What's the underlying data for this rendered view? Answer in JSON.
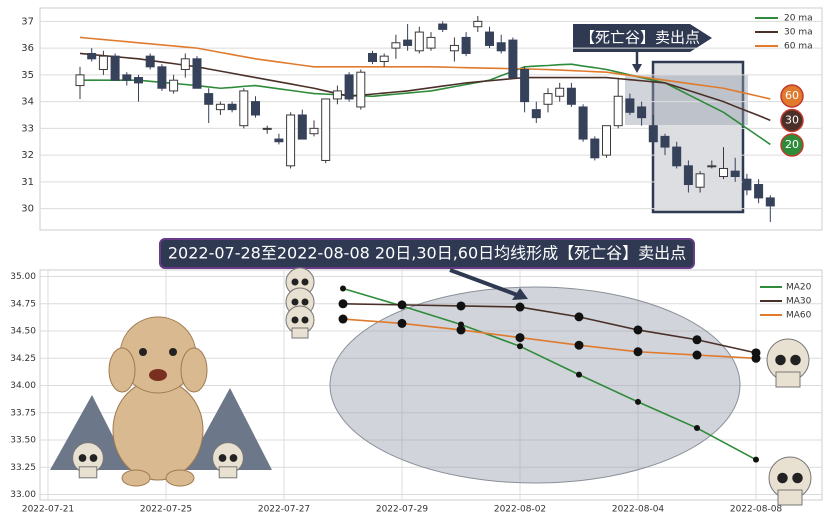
{
  "chart_data": [
    {
      "type": "candlestick",
      "open": [
        34.6,
        35.8,
        35.2,
        35.7,
        35.0,
        34.9,
        35.7,
        35.3,
        34.4,
        35.2,
        35.6,
        34.3,
        33.7,
        33.9,
        33.1,
        34.0,
        33.0,
        32.6,
        31.6,
        33.5,
        32.8,
        31.8,
        34.1,
        35.0,
        33.8,
        35.8,
        35.5,
        36.0,
        36.3,
        35.9,
        36.0,
        36.9,
        35.9,
        36.4,
        36.8,
        36.6,
        36.2,
        36.3,
        35.2,
        33.7,
        33.9,
        34.2,
        34.5,
        33.8,
        32.6,
        32.0,
        33.1,
        34.1,
        33.8,
        33.1,
        32.7,
        32.3,
        31.6,
        30.8,
        31.6,
        31.2,
        31.4,
        31.1,
        30.9,
        30.4
      ],
      "high": [
        35.3,
        36.0,
        35.9,
        35.8,
        35.1,
        35.0,
        35.8,
        35.4,
        35.0,
        35.8,
        35.7,
        34.5,
        34.0,
        34.0,
        34.5,
        34.2,
        33.1,
        32.8,
        33.6,
        33.7,
        33.3,
        34.1,
        34.6,
        35.1,
        35.2,
        35.9,
        35.8,
        36.5,
        36.9,
        36.8,
        36.6,
        37.0,
        36.4,
        36.6,
        37.2,
        36.8,
        36.5,
        36.4,
        35.3,
        34.0,
        34.5,
        34.7,
        34.7,
        33.9,
        32.7,
        33.1,
        34.9,
        34.3,
        34.0,
        33.5,
        32.8,
        32.5,
        31.8,
        31.4,
        31.8,
        32.3,
        31.9,
        31.3,
        31.1,
        30.5
      ],
      "low": [
        34.1,
        35.5,
        35.0,
        34.8,
        34.6,
        34.0,
        35.2,
        34.4,
        34.3,
        34.9,
        34.5,
        33.2,
        33.5,
        33.6,
        33.0,
        33.4,
        32.8,
        32.4,
        31.5,
        32.6,
        32.7,
        31.7,
        33.9,
        34.0,
        33.7,
        35.4,
        35.3,
        35.6,
        35.9,
        35.8,
        35.9,
        36.6,
        35.5,
        35.7,
        36.6,
        36.0,
        35.8,
        34.9,
        33.6,
        33.2,
        33.6,
        34.0,
        33.8,
        32.5,
        31.8,
        31.9,
        33.0,
        33.5,
        33.1,
        32.4,
        32.0,
        31.5,
        30.6,
        30.6,
        31.5,
        31.1,
        31.0,
        30.5,
        30.2,
        29.5
      ],
      "close": [
        35.0,
        35.6,
        35.7,
        34.8,
        34.8,
        34.7,
        35.3,
        34.5,
        34.8,
        35.6,
        34.5,
        33.9,
        33.9,
        33.7,
        34.4,
        33.5,
        33.0,
        32.5,
        33.5,
        32.6,
        33.0,
        34.1,
        34.4,
        34.1,
        35.1,
        35.5,
        35.7,
        36.2,
        36.1,
        36.6,
        36.4,
        36.7,
        36.1,
        35.8,
        37.0,
        36.1,
        35.9,
        34.9,
        34.0,
        33.4,
        34.3,
        34.5,
        33.9,
        32.6,
        31.9,
        33.1,
        34.2,
        33.6,
        33.4,
        32.5,
        32.3,
        31.6,
        30.9,
        31.3,
        31.6,
        31.5,
        31.2,
        30.7,
        30.4,
        30.1
      ],
      "up_color": "#ffffff",
      "down_color": "#36415a",
      "series": [
        {
          "name": "20 ma",
          "period": 20,
          "color": "#2e8b3a",
          "values": [
            34.8,
            34.8,
            34.8,
            34.8,
            34.8,
            34.8,
            34.76,
            34.72,
            34.68,
            34.64,
            34.6,
            34.55,
            34.5,
            34.53,
            34.57,
            34.6,
            34.54,
            34.48,
            34.42,
            34.36,
            34.3,
            34.28,
            34.26,
            34.24,
            34.22,
            34.2,
            34.24,
            34.28,
            34.32,
            34.36,
            34.4,
            34.48,
            34.56,
            34.64,
            34.72,
            34.8,
            34.97,
            35.13,
            35.3,
            35.33,
            35.35,
            35.38,
            35.4,
            35.33,
            35.27,
            35.2,
            35.1,
            35.0,
            34.9,
            34.8,
            34.7,
            34.48,
            34.26,
            34.04,
            33.82,
            33.6,
            33.3,
            33.0,
            32.7,
            32.4
          ]
        },
        {
          "name": "30 ma",
          "period": 30,
          "color": "#4a3028",
          "values": [
            35.8,
            35.76,
            35.72,
            35.68,
            35.64,
            35.6,
            35.54,
            35.48,
            35.42,
            35.36,
            35.3,
            35.22,
            35.14,
            35.06,
            34.98,
            34.9,
            34.82,
            34.74,
            34.66,
            34.58,
            34.5,
            34.4,
            34.3,
            34.2,
            34.24,
            34.28,
            34.32,
            34.36,
            34.4,
            34.46,
            34.52,
            34.58,
            34.64,
            34.7,
            34.74,
            34.78,
            34.82,
            34.86,
            34.9,
            34.9,
            34.9,
            34.9,
            34.9,
            34.9,
            34.9,
            34.9,
            34.86,
            34.82,
            34.78,
            34.74,
            34.7,
            34.56,
            34.42,
            34.28,
            34.14,
            34.0,
            33.82,
            33.65,
            33.48,
            33.3
          ]
        },
        {
          "name": "60 ma",
          "period": 60,
          "color": "#e07b2e",
          "values": [
            36.4,
            36.36,
            36.32,
            36.28,
            36.24,
            36.2,
            36.16,
            36.12,
            36.08,
            36.04,
            36.0,
            35.92,
            35.84,
            35.76,
            35.68,
            35.6,
            35.54,
            35.48,
            35.42,
            35.36,
            35.3,
            35.3,
            35.3,
            35.3,
            35.3,
            35.3,
            35.3,
            35.3,
            35.3,
            35.3,
            35.3,
            35.29,
            35.28,
            35.27,
            35.26,
            35.25,
            35.24,
            35.23,
            35.22,
            35.21,
            35.2,
            35.18,
            35.16,
            35.14,
            35.12,
            35.1,
            35.04,
            34.98,
            34.92,
            34.86,
            34.8,
            34.74,
            34.68,
            34.62,
            34.56,
            34.5,
            34.4,
            34.3,
            34.2,
            34.1
          ]
        }
      ],
      "ylim": [
        29.2,
        37.5
      ],
      "yticks": [
        30,
        31,
        32,
        33,
        34,
        35,
        36,
        37
      ],
      "grid": true,
      "legend": "upper right",
      "annotation": "【死亡谷】卖出点"
    },
    {
      "type": "line",
      "title": "2022-07-28至2022-08-08 20日,30日,60日均线形成【死亡谷】卖出点",
      "categories": [
        "2022-07-21",
        null,
        "2022-07-25",
        null,
        "2022-07-27",
        null,
        "2022-07-29",
        null,
        "2022-08-02",
        null,
        "2022-08-04",
        null,
        "2022-08-08"
      ],
      "series": [
        {
          "name": "MA20",
          "color": "#2e8b3a",
          "values": [
            null,
            null,
            null,
            null,
            null,
            34.89,
            34.73,
            34.56,
            34.36,
            34.1,
            33.85,
            33.61,
            33.32
          ]
        },
        {
          "name": "MA30",
          "color": "#4a3028",
          "values": [
            null,
            null,
            null,
            null,
            null,
            34.75,
            34.74,
            34.73,
            34.72,
            34.63,
            34.51,
            34.42,
            34.3
          ]
        },
        {
          "name": "MA60",
          "color": "#e07b2e",
          "values": [
            null,
            null,
            null,
            null,
            null,
            34.61,
            34.57,
            34.51,
            34.44,
            34.37,
            34.31,
            34.28,
            34.25
          ]
        }
      ],
      "ylim": [
        32.95,
        35.06
      ],
      "yticks": [
        {
          "value": 33,
          "label": "33.00"
        },
        {
          "value": 33.25,
          "label": "33.25"
        },
        {
          "value": 33.5,
          "label": "33.50"
        },
        {
          "value": 33.75,
          "label": "33.75"
        },
        {
          "value": 34,
          "label": "34.00"
        },
        {
          "value": 34.25,
          "label": "34.25"
        },
        {
          "value": 34.5,
          "label": "34.50"
        },
        {
          "value": 34.75,
          "label": "34.75"
        },
        {
          "value": 35,
          "label": "35.00"
        }
      ],
      "grid": true,
      "legend": "upper right"
    }
  ]
}
